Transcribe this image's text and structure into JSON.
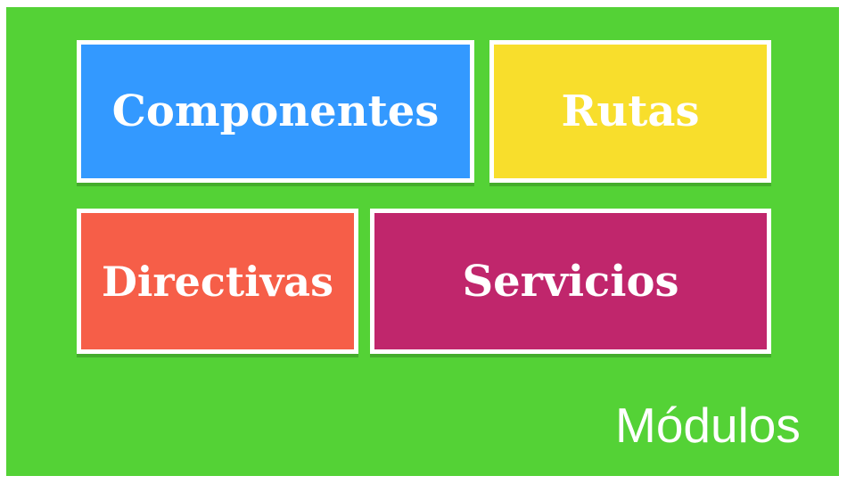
{
  "diagram": {
    "container": {
      "label": "Módulos",
      "color": "#54d236"
    },
    "boxes": [
      {
        "label": "Componentes",
        "color": "#3399ff"
      },
      {
        "label": "Rutas",
        "color": "#f8de2c"
      },
      {
        "label": "Directivas",
        "color": "#f65e48"
      },
      {
        "label": "Servicios",
        "color": "#c0266c"
      }
    ]
  }
}
